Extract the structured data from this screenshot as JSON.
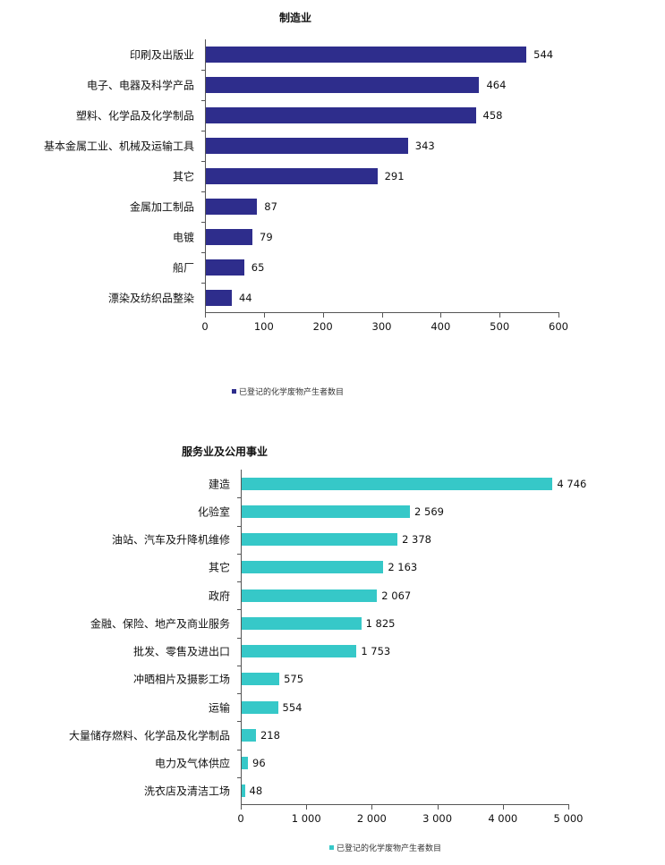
{
  "chart_data": [
    {
      "type": "bar",
      "orientation": "horizontal",
      "title": "制造业",
      "categories": [
        "印刷及出版业",
        "电子、电器及科学产品",
        "塑料、化学品及化学制品",
        "基本金属工业、机械及运输工具",
        "其它",
        "金属加工制品",
        "电镀",
        "船厂",
        "漂染及纺织品整染"
      ],
      "series": [
        {
          "name": "已登记的化学废物产生者数目",
          "values": [
            544,
            464,
            458,
            343,
            291,
            87,
            79,
            65,
            44
          ],
          "color": "#2e2d8c"
        }
      ],
      "value_labels": [
        "544",
        "464",
        "458",
        "343",
        "291",
        "87",
        "79",
        "65",
        "44"
      ],
      "xlabel": "",
      "ylabel": "",
      "xlim": [
        0,
        600
      ],
      "xticks": [
        "0",
        "100",
        "200",
        "300",
        "400",
        "500",
        "600"
      ],
      "xtick_values": [
        0,
        100,
        200,
        300,
        400,
        500,
        600
      ],
      "grid": false,
      "legend_position": "bottom"
    },
    {
      "type": "bar",
      "orientation": "horizontal",
      "title": "服务业及公用事业",
      "categories": [
        "建造",
        "化验室",
        "油站、汽车及升降机维修",
        "其它",
        "政府",
        "金融、保险、地产及商业服务",
        "批发、零售及进出口",
        "冲晒相片及摄影工场",
        "运输",
        "大量储存燃料、化学品及化学制品",
        "电力及气体供应",
        "洗衣店及清洁工场"
      ],
      "series": [
        {
          "name": "已登记的化学废物产生者数目",
          "values": [
            4746,
            2569,
            2378,
            2163,
            2067,
            1825,
            1753,
            575,
            554,
            218,
            96,
            48
          ],
          "color": "#36c8c8"
        }
      ],
      "value_labels": [
        "4 746",
        "2 569",
        "2 378",
        "2 163",
        "2 067",
        "1 825",
        "1 753",
        "575",
        "554",
        "218",
        "96",
        "48"
      ],
      "xlabel": "",
      "ylabel": "",
      "xlim": [
        0,
        5000
      ],
      "xticks": [
        "0",
        "1 000",
        "2 000",
        "3 000",
        "4 000",
        "5 000"
      ],
      "xtick_values": [
        0,
        1000,
        2000,
        3000,
        4000,
        5000
      ],
      "grid": false,
      "legend_position": "bottom"
    }
  ],
  "charts": [
    {
      "title": "制造业",
      "legend": "已登记的化学废物产生者数目"
    },
    {
      "title": "服务业及公用事业",
      "legend": "已登记的化学废物产生者数目"
    }
  ]
}
